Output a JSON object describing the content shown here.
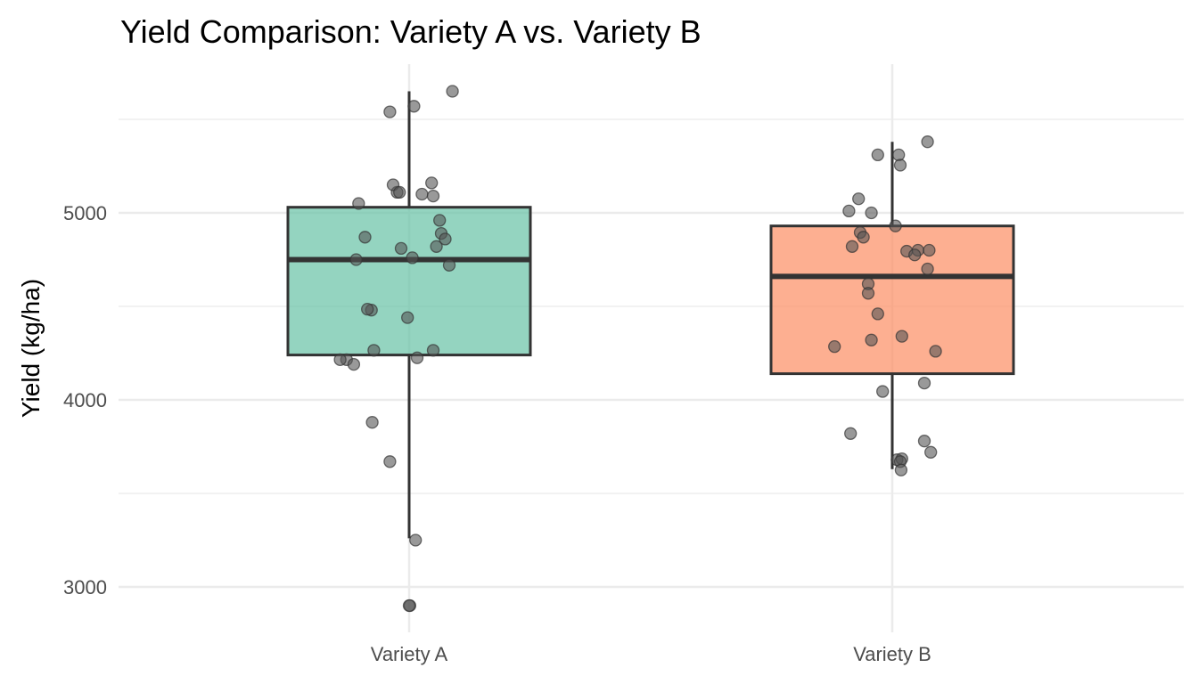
{
  "chart_data": {
    "type": "boxplot",
    "title": "Yield Comparison: Variety A vs. Variety B",
    "xlabel": "",
    "ylabel": "Yield (kg/ha)",
    "ylim": [
      2800,
      5750
    ],
    "yticks": [
      3000,
      4000,
      5000
    ],
    "ytick_labels": [
      "3000",
      "4000",
      "5000"
    ],
    "grid": true,
    "legend": "none",
    "categories": [
      "Variety A",
      "Variety B"
    ],
    "colors": {
      "Variety A": "#66c2a5",
      "Variety B": "#fc8d62",
      "points": "#555555",
      "box_outline": "#333333"
    },
    "boxes": [
      {
        "name": "Variety A",
        "whisker_low": 3260,
        "q1": 4240,
        "median": 4750,
        "q3": 5030,
        "whisker_high": 5650
      },
      {
        "name": "Variety B",
        "whisker_low": 3630,
        "q1": 4140,
        "median": 4660,
        "q3": 4930,
        "whisker_high": 5380
      }
    ],
    "points": [
      {
        "name": "Variety A",
        "jitter": [
          0.54,
          -0.24,
          0.06,
          0.28,
          -0.15,
          -0.2,
          -0.12,
          0.16,
          0.3,
          -0.63,
          0.38,
          0.4,
          0.45,
          0.34,
          0.5,
          -0.55,
          -0.66,
          -0.47,
          -0.52,
          0.04,
          -0.1,
          -0.02,
          -0.78,
          -0.86,
          -0.44,
          -0.69,
          0.3,
          0.1,
          -0.46,
          -0.24,
          0.08,
          0.01,
          0.0
        ],
        "values": [
          5650,
          5540,
          5570,
          5160,
          5110,
          5150,
          5110,
          5100,
          5090,
          5050,
          4960,
          4890,
          4860,
          4820,
          4720,
          4870,
          4750,
          4480,
          4485,
          4760,
          4810,
          4440,
          4215,
          4215,
          4265,
          4190,
          4265,
          4225,
          3880,
          3670,
          3250,
          2900,
          2900
        ]
      },
      {
        "name": "Variety B",
        "jitter": [
          0.44,
          -0.18,
          0.08,
          0.1,
          -0.42,
          -0.26,
          0.04,
          -0.54,
          0.32,
          -0.4,
          -0.36,
          -0.5,
          0.18,
          0.28,
          0.46,
          0.44,
          -0.3,
          -0.3,
          -0.18,
          -0.26,
          -0.72,
          0.54,
          0.12,
          0.4,
          -0.12,
          -0.52,
          0.4,
          0.48,
          0.06,
          0.12,
          0.1,
          0.11
        ],
        "values": [
          5380,
          5310,
          5310,
          5255,
          5075,
          5000,
          4930,
          5010,
          4800,
          4895,
          4870,
          4820,
          4795,
          4775,
          4800,
          4700,
          4620,
          4570,
          4460,
          4320,
          4285,
          4260,
          4340,
          4090,
          4045,
          3820,
          3780,
          3720,
          3680,
          3685,
          3670,
          3625
        ]
      }
    ]
  }
}
